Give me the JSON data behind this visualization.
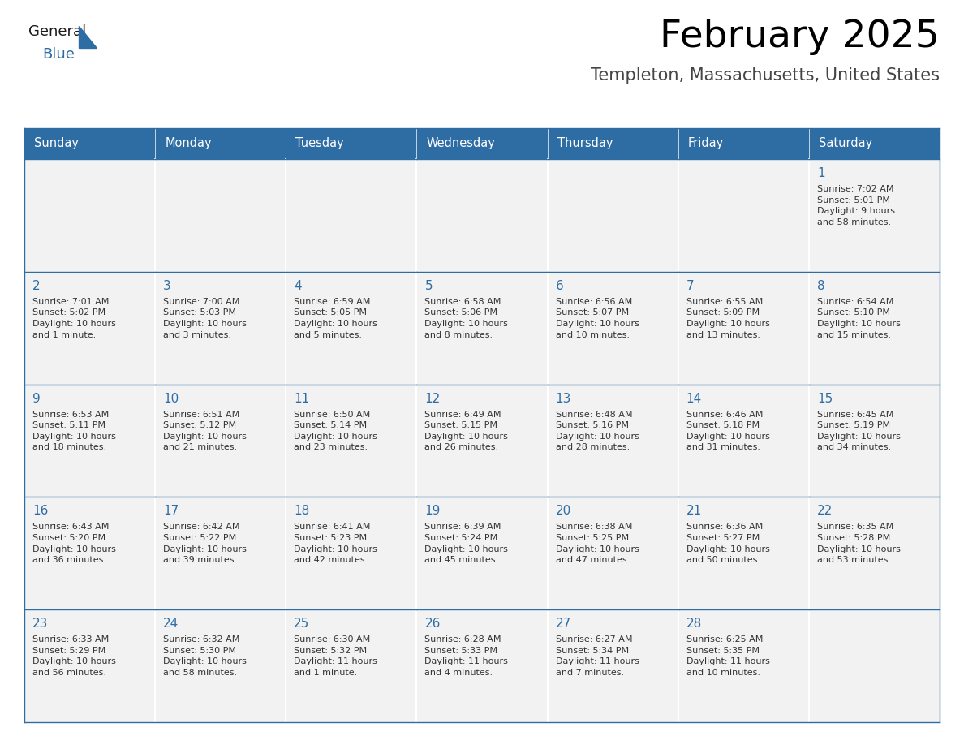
{
  "title": "February 2025",
  "subtitle": "Templeton, Massachusetts, United States",
  "header_color": "#2E6DA4",
  "header_text_color": "#FFFFFF",
  "cell_bg_color": "#F2F2F2",
  "cell_bg_empty": "#F2F2F2",
  "border_color": "#2E6DA4",
  "day_number_color": "#2E6DA4",
  "cell_text_color": "#333333",
  "white": "#FFFFFF",
  "days_of_week": [
    "Sunday",
    "Monday",
    "Tuesday",
    "Wednesday",
    "Thursday",
    "Friday",
    "Saturday"
  ],
  "weeks": [
    [
      {
        "day": "",
        "info": ""
      },
      {
        "day": "",
        "info": ""
      },
      {
        "day": "",
        "info": ""
      },
      {
        "day": "",
        "info": ""
      },
      {
        "day": "",
        "info": ""
      },
      {
        "day": "",
        "info": ""
      },
      {
        "day": "1",
        "info": "Sunrise: 7:02 AM\nSunset: 5:01 PM\nDaylight: 9 hours\nand 58 minutes."
      }
    ],
    [
      {
        "day": "2",
        "info": "Sunrise: 7:01 AM\nSunset: 5:02 PM\nDaylight: 10 hours\nand 1 minute."
      },
      {
        "day": "3",
        "info": "Sunrise: 7:00 AM\nSunset: 5:03 PM\nDaylight: 10 hours\nand 3 minutes."
      },
      {
        "day": "4",
        "info": "Sunrise: 6:59 AM\nSunset: 5:05 PM\nDaylight: 10 hours\nand 5 minutes."
      },
      {
        "day": "5",
        "info": "Sunrise: 6:58 AM\nSunset: 5:06 PM\nDaylight: 10 hours\nand 8 minutes."
      },
      {
        "day": "6",
        "info": "Sunrise: 6:56 AM\nSunset: 5:07 PM\nDaylight: 10 hours\nand 10 minutes."
      },
      {
        "day": "7",
        "info": "Sunrise: 6:55 AM\nSunset: 5:09 PM\nDaylight: 10 hours\nand 13 minutes."
      },
      {
        "day": "8",
        "info": "Sunrise: 6:54 AM\nSunset: 5:10 PM\nDaylight: 10 hours\nand 15 minutes."
      }
    ],
    [
      {
        "day": "9",
        "info": "Sunrise: 6:53 AM\nSunset: 5:11 PM\nDaylight: 10 hours\nand 18 minutes."
      },
      {
        "day": "10",
        "info": "Sunrise: 6:51 AM\nSunset: 5:12 PM\nDaylight: 10 hours\nand 21 minutes."
      },
      {
        "day": "11",
        "info": "Sunrise: 6:50 AM\nSunset: 5:14 PM\nDaylight: 10 hours\nand 23 minutes."
      },
      {
        "day": "12",
        "info": "Sunrise: 6:49 AM\nSunset: 5:15 PM\nDaylight: 10 hours\nand 26 minutes."
      },
      {
        "day": "13",
        "info": "Sunrise: 6:48 AM\nSunset: 5:16 PM\nDaylight: 10 hours\nand 28 minutes."
      },
      {
        "day": "14",
        "info": "Sunrise: 6:46 AM\nSunset: 5:18 PM\nDaylight: 10 hours\nand 31 minutes."
      },
      {
        "day": "15",
        "info": "Sunrise: 6:45 AM\nSunset: 5:19 PM\nDaylight: 10 hours\nand 34 minutes."
      }
    ],
    [
      {
        "day": "16",
        "info": "Sunrise: 6:43 AM\nSunset: 5:20 PM\nDaylight: 10 hours\nand 36 minutes."
      },
      {
        "day": "17",
        "info": "Sunrise: 6:42 AM\nSunset: 5:22 PM\nDaylight: 10 hours\nand 39 minutes."
      },
      {
        "day": "18",
        "info": "Sunrise: 6:41 AM\nSunset: 5:23 PM\nDaylight: 10 hours\nand 42 minutes."
      },
      {
        "day": "19",
        "info": "Sunrise: 6:39 AM\nSunset: 5:24 PM\nDaylight: 10 hours\nand 45 minutes."
      },
      {
        "day": "20",
        "info": "Sunrise: 6:38 AM\nSunset: 5:25 PM\nDaylight: 10 hours\nand 47 minutes."
      },
      {
        "day": "21",
        "info": "Sunrise: 6:36 AM\nSunset: 5:27 PM\nDaylight: 10 hours\nand 50 minutes."
      },
      {
        "day": "22",
        "info": "Sunrise: 6:35 AM\nSunset: 5:28 PM\nDaylight: 10 hours\nand 53 minutes."
      }
    ],
    [
      {
        "day": "23",
        "info": "Sunrise: 6:33 AM\nSunset: 5:29 PM\nDaylight: 10 hours\nand 56 minutes."
      },
      {
        "day": "24",
        "info": "Sunrise: 6:32 AM\nSunset: 5:30 PM\nDaylight: 10 hours\nand 58 minutes."
      },
      {
        "day": "25",
        "info": "Sunrise: 6:30 AM\nSunset: 5:32 PM\nDaylight: 11 hours\nand 1 minute."
      },
      {
        "day": "26",
        "info": "Sunrise: 6:28 AM\nSunset: 5:33 PM\nDaylight: 11 hours\nand 4 minutes."
      },
      {
        "day": "27",
        "info": "Sunrise: 6:27 AM\nSunset: 5:34 PM\nDaylight: 11 hours\nand 7 minutes."
      },
      {
        "day": "28",
        "info": "Sunrise: 6:25 AM\nSunset: 5:35 PM\nDaylight: 11 hours\nand 10 minutes."
      },
      {
        "day": "",
        "info": ""
      }
    ]
  ]
}
